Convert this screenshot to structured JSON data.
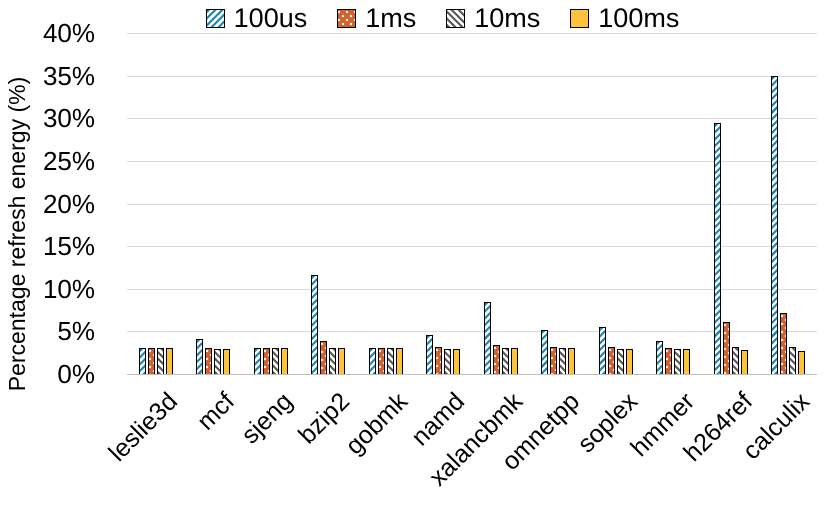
{
  "chart_data": {
    "type": "bar",
    "title": "",
    "xlabel": "",
    "ylabel": "Percentage refresh energy (%)",
    "ylim": [
      0,
      40
    ],
    "ytick_labels": [
      "0%",
      "5%",
      "10%",
      "15%",
      "20%",
      "25%",
      "30%",
      "35%",
      "40%"
    ],
    "grid": true,
    "legend_position": "top",
    "categories": [
      "leslie3d",
      "mcf",
      "sjeng",
      "bzip2",
      "gobmk",
      "namd",
      "xalancbmk",
      "omnetpp",
      "soplex",
      "hmmer",
      "h264ref",
      "calculix"
    ],
    "series": [
      {
        "name": "100us",
        "color": "#1B87B2",
        "pattern": "diagonal-up",
        "values": [
          3.0,
          4.1,
          3.0,
          11.6,
          3.0,
          4.6,
          8.4,
          5.2,
          5.5,
          3.9,
          29.5,
          35.0
        ]
      },
      {
        "name": "1ms",
        "color": "#D2622B",
        "pattern": "dots",
        "values": [
          3.0,
          3.0,
          3.0,
          3.9,
          3.0,
          3.2,
          3.4,
          3.2,
          3.2,
          3.1,
          6.1,
          7.2
        ]
      },
      {
        "name": "10ms",
        "color": "#595959",
        "pattern": "diagonal-down",
        "values": [
          3.0,
          2.9,
          3.0,
          3.1,
          3.0,
          2.9,
          3.0,
          3.0,
          2.9,
          2.9,
          3.2,
          3.2
        ]
      },
      {
        "name": "100ms",
        "color": "#FDC33C",
        "pattern": "solid",
        "values": [
          3.0,
          2.9,
          3.0,
          3.0,
          3.0,
          2.9,
          3.0,
          3.0,
          2.9,
          2.9,
          2.8,
          2.7
        ]
      }
    ]
  }
}
